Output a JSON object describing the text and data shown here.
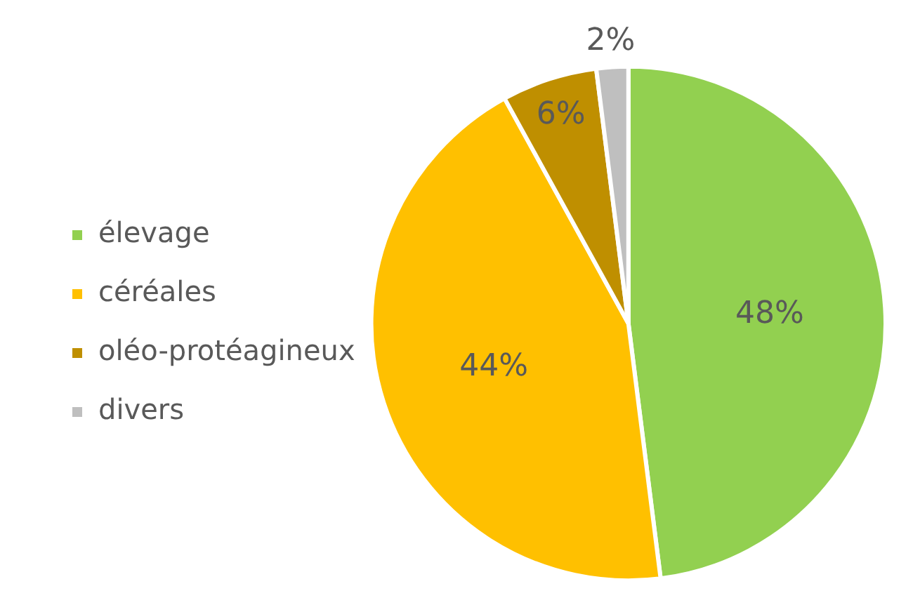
{
  "chart_data": {
    "type": "pie",
    "categories": [
      "élevage",
      "céréales",
      "oléo-protéagineux",
      "divers"
    ],
    "values": [
      48,
      44,
      6,
      2
    ],
    "colors": [
      "#92d050",
      "#ffc000",
      "#bf8f00",
      "#bfbfbf"
    ],
    "value_labels": [
      "48%",
      "44%",
      "6%",
      "2%"
    ],
    "legend": "left"
  }
}
